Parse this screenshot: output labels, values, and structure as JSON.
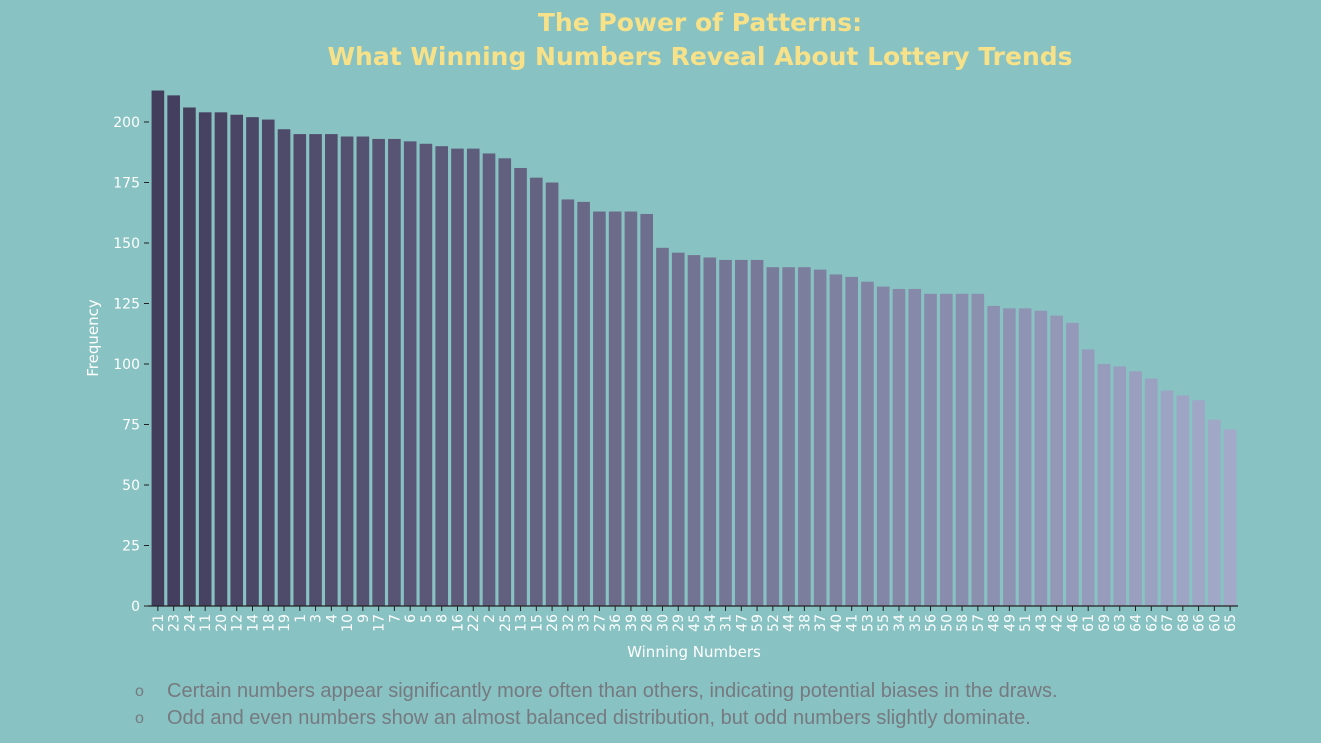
{
  "chart_data": {
    "type": "bar",
    "title": "The Power of Patterns:\nWhat Winning Numbers Reveal About Lottery Trends",
    "title_lines": [
      "The Power of Patterns:",
      "What Winning Numbers Reveal About Lottery Trends"
    ],
    "xlabel": "Winning Numbers",
    "ylabel": "Frequency",
    "ylim": [
      0,
      215
    ],
    "yticks": [
      0,
      25,
      50,
      75,
      100,
      125,
      150,
      175,
      200
    ],
    "grid": false,
    "categories": [
      "21",
      "23",
      "24",
      "11",
      "20",
      "12",
      "14",
      "18",
      "19",
      "1",
      "3",
      "4",
      "10",
      "9",
      "17",
      "7",
      "6",
      "5",
      "8",
      "16",
      "22",
      "2",
      "25",
      "13",
      "15",
      "26",
      "32",
      "33",
      "27",
      "36",
      "39",
      "28",
      "30",
      "29",
      "45",
      "54",
      "31",
      "47",
      "59",
      "52",
      "44",
      "38",
      "37",
      "40",
      "41",
      "53",
      "55",
      "34",
      "35",
      "56",
      "50",
      "58",
      "57",
      "48",
      "49",
      "51",
      "43",
      "42",
      "46",
      "61",
      "69",
      "63",
      "64",
      "62",
      "67",
      "68",
      "66",
      "60",
      "65"
    ],
    "values": [
      213,
      211,
      206,
      204,
      204,
      203,
      202,
      201,
      197,
      195,
      195,
      195,
      194,
      194,
      193,
      193,
      192,
      191,
      190,
      189,
      189,
      187,
      185,
      181,
      177,
      175,
      168,
      167,
      163,
      163,
      163,
      162,
      148,
      146,
      145,
      144,
      143,
      143,
      143,
      140,
      140,
      140,
      139,
      137,
      136,
      134,
      132,
      131,
      131,
      129,
      129,
      129,
      129,
      124,
      123,
      123,
      122,
      120,
      117,
      106,
      100,
      99,
      97,
      94,
      89,
      87,
      85,
      77,
      73
    ],
    "colors": {
      "bar_start": "#433d5c",
      "bar_end": "#a2a9c9",
      "background": "#88c2c2",
      "title": "#f7e189",
      "axis_text": "#ffffff"
    }
  },
  "bullets": [
    {
      "marker": "o",
      "text": "Certain numbers appear significantly more often than others, indicating potential biases in the draws."
    },
    {
      "marker": "o",
      "text": "Odd and even numbers show an almost balanced distribution, but odd numbers slightly dominate."
    }
  ]
}
